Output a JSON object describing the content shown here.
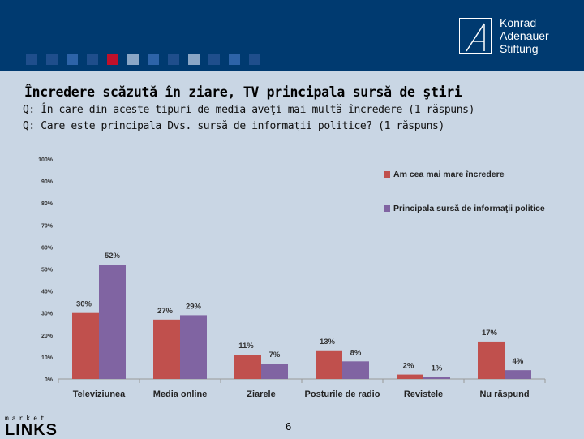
{
  "header": {
    "logo_lines": [
      "Konrad",
      "Adenauer",
      "Stiftung"
    ],
    "squares": [
      "#1f4e8c",
      "#1f4e8c",
      "#2d63a8",
      "#1f4e8c",
      "#c0102a",
      "#8aa6c6",
      "#2d63a8",
      "#1f4e8c",
      "#8aa6c6",
      "#1f4e8c",
      "#2d63a8",
      "#1f4e8c"
    ]
  },
  "title": "Încredere scăzută în ziare, TV principala sursă de ştiri",
  "questions": {
    "q1": "Q: În care din aceste tipuri de media aveţi mai multă încredere (1 răspuns)",
    "q2": "Q: Care este principala Dvs. sursă de informaţii politice? (1 răspuns)"
  },
  "chart_data": {
    "type": "bar",
    "categories": [
      "Televiziunea",
      "Media online",
      "Ziarele",
      "Posturile de radio",
      "Revistele",
      "Nu răspund"
    ],
    "series": [
      {
        "name": "Am cea mai mare încredere",
        "values": [
          30,
          27,
          11,
          13,
          2,
          17
        ],
        "labels": [
          "30%",
          "27%",
          "11%",
          "13%",
          "2%",
          "17%"
        ],
        "color": "#c0504d"
      },
      {
        "name": "Principala sursă de informaţii politice",
        "values": [
          52,
          29,
          7,
          8,
          1,
          4
        ],
        "labels": [
          "52%",
          "29%",
          "7%",
          "8%",
          "1%",
          "4%"
        ],
        "color": "#8064a2"
      }
    ],
    "yticks": [
      "0%",
      "10%",
      "20%",
      "30%",
      "40%",
      "50%",
      "60%",
      "70%",
      "80%",
      "90%",
      "100%"
    ],
    "ylim": [
      0,
      100
    ],
    "grid": false,
    "legend": "top-right"
  },
  "footer": {
    "page_number": "6",
    "brand_top": "market",
    "brand_bottom": "LINKS"
  }
}
